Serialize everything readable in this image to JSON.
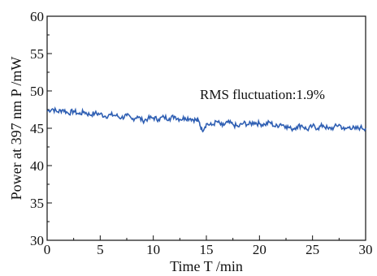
{
  "chart_data": {
    "type": "line",
    "title": "",
    "xlabel": "Time T /min",
    "ylabel": "Power at 397 nm P /mW",
    "xlim": [
      0,
      30
    ],
    "ylim": [
      30,
      60
    ],
    "x_ticks": [
      0,
      5,
      10,
      15,
      20,
      25,
      30
    ],
    "y_ticks": [
      30,
      35,
      40,
      45,
      50,
      55,
      60
    ],
    "grid": false,
    "legend": "none",
    "annotation": "RMS fluctuation:1.9%",
    "series_color": "#2f5fb3",
    "series": [
      {
        "x": [
          0,
          0.5,
          1,
          1.5,
          2,
          2.5,
          3,
          3.5,
          4,
          4.5,
          5,
          5.5,
          6,
          6.5,
          7,
          7.5,
          8,
          8.5,
          9,
          9.5,
          10,
          10.5,
          11,
          11.5,
          12,
          12.5,
          13,
          13.5,
          14,
          14.3,
          14.6,
          15,
          15.5,
          16,
          16.5,
          17,
          17.5,
          18,
          18.5,
          19,
          19.5,
          20,
          20.5,
          21,
          21.5,
          22,
          22.5,
          23,
          23.5,
          24,
          24.5,
          25,
          25.5,
          26,
          26.5,
          27,
          27.5,
          28,
          28.5,
          29,
          29.5,
          30
        ],
        "y": [
          47.3,
          47.6,
          47.2,
          47.5,
          47.0,
          47.3,
          46.9,
          47.2,
          46.8,
          47.0,
          46.9,
          46.6,
          46.8,
          46.7,
          46.4,
          46.7,
          46.2,
          46.6,
          46.0,
          46.3,
          46.4,
          46.2,
          46.5,
          46.3,
          46.6,
          46.2,
          46.4,
          46.3,
          46.1,
          45.9,
          44.7,
          45.6,
          45.4,
          45.9,
          45.3,
          45.8,
          45.5,
          45.2,
          45.7,
          45.5,
          45.8,
          45.6,
          45.5,
          45.8,
          45.2,
          45.6,
          45.3,
          44.9,
          45.2,
          45.4,
          44.8,
          45.3,
          45.0,
          45.4,
          44.9,
          45.1,
          45.5,
          44.8,
          45.2,
          44.9,
          45.1,
          45.0
        ]
      }
    ]
  }
}
